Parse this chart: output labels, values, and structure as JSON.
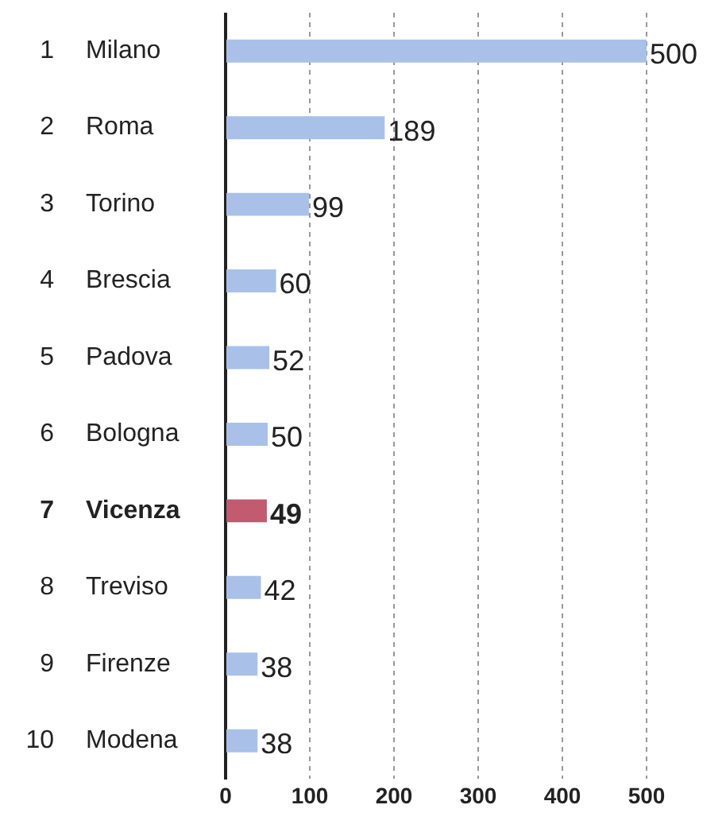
{
  "chart_data": {
    "type": "bar",
    "orientation": "horizontal",
    "categories": [
      "1 Milano",
      "2 Roma",
      "3 Torino",
      "4 Brescia",
      "5 Padova",
      "6 Bologna",
      "7 Vicenza",
      "8 Treviso",
      "9 Firenze",
      "10 Modena"
    ],
    "values": [
      500,
      189,
      99,
      60,
      52,
      50,
      49,
      42,
      38,
      38
    ],
    "colors": [
      "#a9c1e8",
      "#a9c1e8",
      "#a9c1e8",
      "#a9c1e8",
      "#a9c1e8",
      "#a9c1e8",
      "#c25a70",
      "#a9c1e8",
      "#a9c1e8",
      "#a9c1e8"
    ],
    "xlim": [
      0,
      500
    ],
    "xticks": [
      0,
      100,
      200,
      300,
      400,
      500
    ],
    "grid": "x",
    "data_labels": true,
    "legend": false
  }
}
